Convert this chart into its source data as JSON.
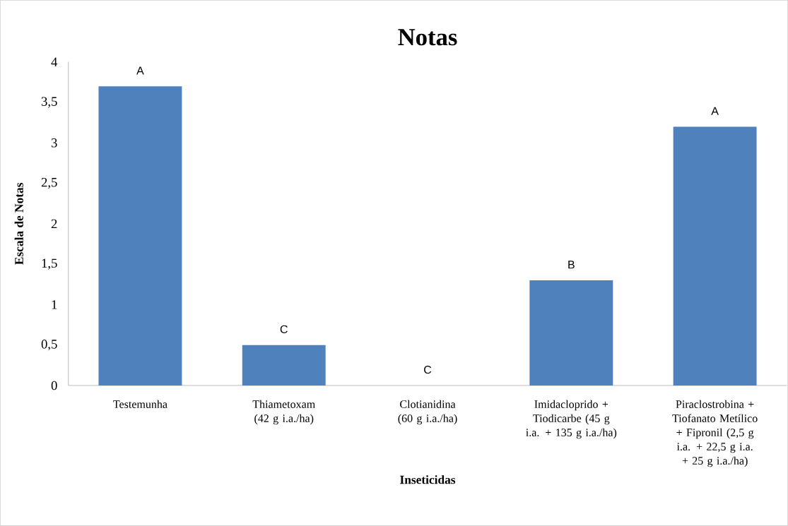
{
  "chart_data": {
    "type": "bar",
    "title": "Notas",
    "xlabel": "Inseticidas",
    "ylabel": "Escala de Notas",
    "categories": [
      "Testemunha",
      "Thiametoxam (42 g i.a./ha)",
      "Clotianidina (60 g i.a./ha)",
      "Imidacloprido + Tiodicarbe (45 g i.a. + 135 g i.a./ha)",
      "Piraclostrobina + Tiofanato Metílico + Fipronil (2,5 g i.a. + 22,5 g i.a. + 25 g i.a./ha)"
    ],
    "values": [
      3.7,
      0.5,
      0,
      1.3,
      3.2
    ],
    "color": "#4f81bd",
    "ylim": [
      0,
      4
    ],
    "yticks": [
      0,
      {
        "value": 0.5,
        "label": "0,5"
      },
      1,
      {
        "value": 1.5,
        "label": "1,5"
      },
      2,
      {
        "value": 2.5,
        "label": "2,5"
      },
      3,
      {
        "value": 3.5,
        "label": "3,5"
      },
      4
    ],
    "annotations": [
      {
        "text": "A",
        "x": "Testemunha",
        "y": 3.7
      },
      {
        "text": "C",
        "x": "Thiametoxam (42 g i.a./ha)",
        "y": 0.5
      },
      {
        "text": "C",
        "x": "Clotianidina (60 g i.a./ha)",
        "y": 0
      },
      {
        "text": "B",
        "x": "Imidacloprido + Tiodicarbe (45 g i.a. + 135 g i.a./ha)",
        "y": 1.3
      },
      {
        "text": "A",
        "x": "Piraclostrobina + Tiofanato Metílico + Fipronil (2,5 g i.a. + 22,5 g i.a. + 25 g i.a./ha)",
        "y": 3.2
      }
    ],
    "grid": false
  }
}
